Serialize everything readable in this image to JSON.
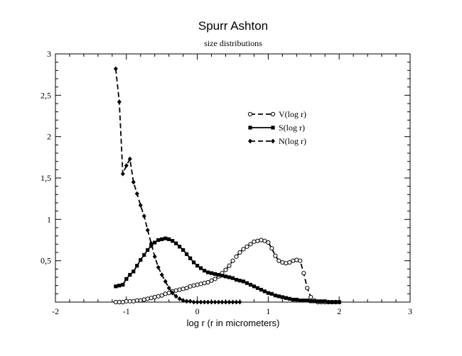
{
  "chart_data": {
    "type": "line",
    "title": "Spurr Ashton",
    "subtitle": "size distributions",
    "xlabel": "log r (r in micrometers)",
    "ylabel": "",
    "xlim": [
      -2,
      3
    ],
    "ylim": [
      0,
      3
    ],
    "x_ticks": [
      "-2",
      "-1",
      "0",
      "1",
      "2",
      "3"
    ],
    "y_ticks": [
      "0,5",
      "1",
      "1,5",
      "2",
      "2,5",
      "3"
    ],
    "grid": false,
    "legend_position": "upper-center",
    "series": [
      {
        "name": "V(log r)",
        "marker": "open-circle",
        "line": "dashed",
        "color": "#000000",
        "x": [
          -1.15,
          -1.1,
          -1.05,
          -1.0,
          -0.95,
          -0.9,
          -0.85,
          -0.8,
          -0.75,
          -0.7,
          -0.65,
          -0.6,
          -0.55,
          -0.5,
          -0.45,
          -0.4,
          -0.35,
          -0.3,
          -0.25,
          -0.2,
          -0.15,
          -0.1,
          -0.05,
          0.0,
          0.05,
          0.1,
          0.15,
          0.2,
          0.25,
          0.3,
          0.35,
          0.4,
          0.45,
          0.5,
          0.55,
          0.6,
          0.65,
          0.7,
          0.75,
          0.8,
          0.85,
          0.9,
          0.95,
          1.0,
          1.05,
          1.1,
          1.15,
          1.2,
          1.25,
          1.3,
          1.35,
          1.4,
          1.45,
          1.5,
          1.55,
          1.6,
          1.65,
          1.7,
          1.75,
          1.8,
          1.85,
          1.9,
          1.95,
          2.0
        ],
        "y": [
          0.0,
          0.0,
          0.0,
          0.01,
          0.01,
          0.01,
          0.02,
          0.02,
          0.03,
          0.04,
          0.05,
          0.06,
          0.07,
          0.08,
          0.1,
          0.11,
          0.13,
          0.14,
          0.15,
          0.16,
          0.17,
          0.19,
          0.2,
          0.21,
          0.22,
          0.23,
          0.24,
          0.26,
          0.28,
          0.31,
          0.35,
          0.39,
          0.44,
          0.5,
          0.55,
          0.6,
          0.64,
          0.67,
          0.7,
          0.73,
          0.74,
          0.75,
          0.74,
          0.72,
          0.65,
          0.56,
          0.5,
          0.48,
          0.47,
          0.48,
          0.5,
          0.51,
          0.5,
          0.35,
          0.17,
          0.06,
          0.02,
          0.0,
          0.0,
          0.0,
          0.0,
          0.0,
          0.0,
          0.0
        ]
      },
      {
        "name": "S(log r)",
        "marker": "filled-square",
        "line": "solid",
        "color": "#000000",
        "x": [
          -1.15,
          -1.1,
          -1.05,
          -1.0,
          -0.95,
          -0.9,
          -0.85,
          -0.8,
          -0.75,
          -0.7,
          -0.65,
          -0.6,
          -0.55,
          -0.5,
          -0.45,
          -0.4,
          -0.35,
          -0.3,
          -0.25,
          -0.2,
          -0.15,
          -0.1,
          -0.05,
          0.0,
          0.05,
          0.1,
          0.15,
          0.2,
          0.25,
          0.3,
          0.35,
          0.4,
          0.45,
          0.5,
          0.55,
          0.6,
          0.65,
          0.7,
          0.75,
          0.8,
          0.85,
          0.9,
          0.95,
          1.0,
          1.05,
          1.1,
          1.15,
          1.2,
          1.25,
          1.3,
          1.35,
          1.4,
          1.45,
          1.5,
          1.55,
          1.6,
          1.65,
          1.7,
          1.75,
          1.8,
          1.85,
          1.9,
          1.95,
          2.0
        ],
        "y": [
          0.19,
          0.2,
          0.21,
          0.28,
          0.33,
          0.37,
          0.44,
          0.51,
          0.57,
          0.63,
          0.68,
          0.72,
          0.75,
          0.76,
          0.77,
          0.76,
          0.74,
          0.71,
          0.67,
          0.63,
          0.58,
          0.53,
          0.48,
          0.44,
          0.41,
          0.38,
          0.36,
          0.35,
          0.34,
          0.33,
          0.32,
          0.31,
          0.3,
          0.29,
          0.27,
          0.26,
          0.25,
          0.23,
          0.21,
          0.19,
          0.17,
          0.15,
          0.13,
          0.11,
          0.1,
          0.08,
          0.07,
          0.06,
          0.05,
          0.04,
          0.03,
          0.03,
          0.02,
          0.02,
          0.02,
          0.01,
          0.01,
          0.01,
          0.01,
          0.01,
          0.0,
          0.0,
          0.0,
          0.0
        ]
      },
      {
        "name": "N(log r)",
        "marker": "filled-diamond",
        "line": "dashed",
        "color": "#000000",
        "x": [
          -1.15,
          -1.1,
          -1.05,
          -1.0,
          -0.95,
          -0.9,
          -0.85,
          -0.8,
          -0.75,
          -0.7,
          -0.65,
          -0.6,
          -0.55,
          -0.5,
          -0.45,
          -0.4,
          -0.35,
          -0.3,
          -0.25,
          -0.2,
          -0.15,
          -0.1,
          -0.05,
          0.0,
          0.05,
          0.1,
          0.15,
          0.2,
          0.25,
          0.3,
          0.35,
          0.4,
          0.45,
          0.5,
          0.55,
          0.6
        ],
        "y": [
          2.82,
          2.42,
          1.55,
          1.65,
          1.73,
          1.45,
          1.31,
          1.17,
          1.04,
          0.87,
          0.71,
          0.55,
          0.42,
          0.33,
          0.25,
          0.17,
          0.11,
          0.07,
          0.04,
          0.02,
          0.01,
          0.01,
          0.0,
          0.0,
          0.0,
          0.0,
          0.0,
          0.0,
          0.0,
          0.0,
          0.0,
          0.0,
          0.0,
          0.0,
          0.0,
          0.0
        ]
      }
    ]
  }
}
